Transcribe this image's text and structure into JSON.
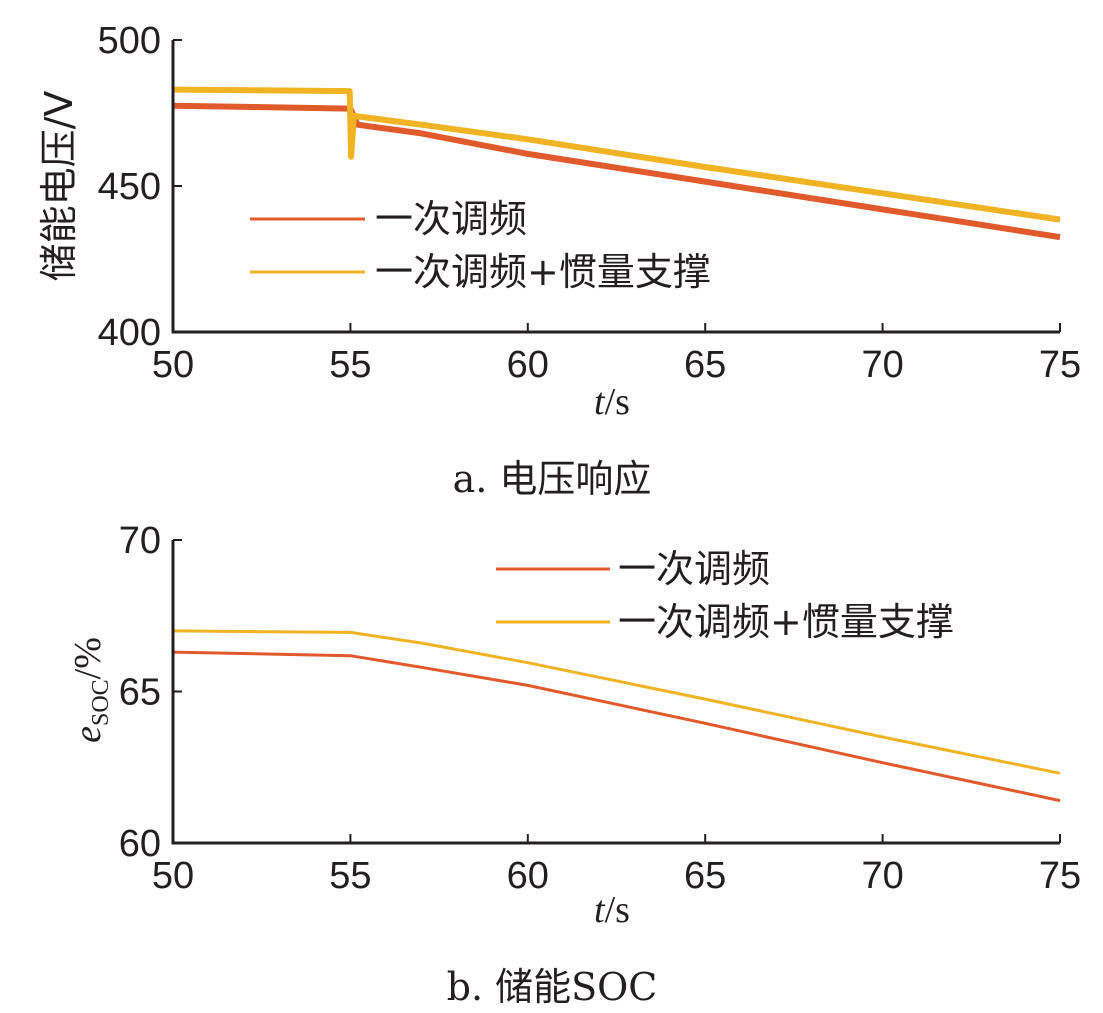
{
  "chart_data": [
    {
      "type": "line",
      "ylabel": "储能电压/V",
      "xlabel": "t/s",
      "caption": "a. 电压响应",
      "xlim": [
        50,
        75
      ],
      "ylim": [
        400,
        500
      ],
      "xticks": [
        "50",
        "55",
        "60",
        "65",
        "70",
        "75"
      ],
      "yticks": [
        "400",
        "450",
        "500"
      ],
      "grid": false,
      "legend_position": "center-left",
      "series": [
        {
          "name": "一次调频",
          "color": "#e05a2b",
          "points": [
            [
              50,
              477.5
            ],
            [
              55,
              476.5
            ],
            [
              55.2,
              471
            ],
            [
              57,
              468
            ],
            [
              60,
              461
            ],
            [
              65,
              451.5
            ],
            [
              70,
              442
            ],
            [
              75,
              432.5
            ]
          ]
        },
        {
          "name": "一次调频+惯量支撑",
          "color": "#f0b323",
          "points": [
            [
              50,
              483
            ],
            [
              54.98,
              482.5
            ],
            [
              55.02,
              460
            ],
            [
              55.1,
              474
            ],
            [
              57,
              471
            ],
            [
              60,
              466
            ],
            [
              65,
              456.5
            ],
            [
              70,
              447.5
            ],
            [
              75,
              438.5
            ]
          ]
        }
      ]
    },
    {
      "type": "line",
      "ylabel_main": "e",
      "ylabel_sub": "SOC",
      "ylabel_unit": "/%",
      "xlabel": "t/s",
      "caption": "b. 储能SOC",
      "xlim": [
        50,
        75
      ],
      "ylim": [
        60,
        70
      ],
      "xticks": [
        "50",
        "55",
        "60",
        "65",
        "70",
        "75"
      ],
      "yticks": [
        "60",
        "65",
        "70"
      ],
      "grid": false,
      "legend_position": "top-right",
      "series": [
        {
          "name": "一次调频",
          "color": "#e05a2b",
          "points": [
            [
              50,
              66.3
            ],
            [
              55,
              66.18
            ],
            [
              57,
              65.8
            ],
            [
              60,
              65.2
            ],
            [
              65,
              63.95
            ],
            [
              70,
              62.65
            ],
            [
              75,
              61.4
            ]
          ]
        },
        {
          "name": "一次调频+惯量支撑",
          "color": "#f0b323",
          "points": [
            [
              50,
              67.0
            ],
            [
              55,
              66.95
            ],
            [
              57,
              66.6
            ],
            [
              60,
              65.95
            ],
            [
              65,
              64.75
            ],
            [
              70,
              63.5
            ],
            [
              75,
              62.3
            ]
          ]
        }
      ]
    }
  ]
}
